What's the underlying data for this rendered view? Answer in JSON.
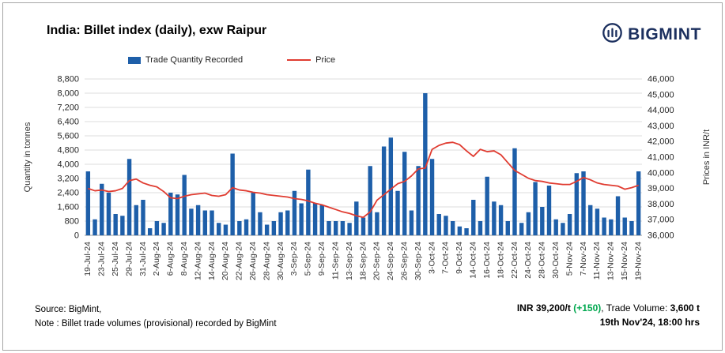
{
  "title": "India: Billet index (daily), exw Raipur",
  "brand": "BIGMINT",
  "legend": {
    "bars": "Trade Quantity Recorded",
    "line": "Price"
  },
  "colors": {
    "bar": "#1E5FA9",
    "line": "#E03C31",
    "brand": "#1B2F5E",
    "green": "#00A84F",
    "grid": "#DCDCDC",
    "axis": "#9A9A9A",
    "tick_text": "#262626",
    "date_text": "#333333"
  },
  "footer": {
    "source": "Source: BigMint,",
    "note": "Note : Billet trade volumes (provisional) recorded by BigMint",
    "price_label": "INR 39,200/t ",
    "price_change": "(+150)",
    "volume_label": ", Trade Volume: ",
    "volume_value": "3,600 t",
    "timestamp": "19th Nov'24, 18:00 hrs"
  },
  "chart_data": {
    "type": "combo-bar-line",
    "title": "India: Billet index (daily), exw Raipur",
    "legend_position": "top",
    "grid": true,
    "tick_every": 2,
    "tick_labels": [
      "19-Jul-24",
      "23-Jul-24",
      "25-Jul-24",
      "29-Jul-24",
      "31-Jul-24",
      "2-Aug-24",
      "6-Aug-24",
      "8-Aug-24",
      "12-Aug-24",
      "14-Aug-24",
      "20-Aug-24",
      "22-Aug-24",
      "26-Aug-24",
      "28-Aug-24",
      "30-Aug-24",
      "3-Sep-24",
      "5-Sep-24",
      "9-Sep-24",
      "11-Sep-24",
      "13-Sep-24",
      "18-Sep-24",
      "20-Sep-24",
      "24-Sep-24",
      "26-Sep-24",
      "30-Sep-24",
      "3-Oct-24",
      "7-Oct-24",
      "9-Oct-24",
      "14-Oct-24",
      "16-Oct-24",
      "18-Oct-24",
      "22-Oct-24",
      "24-Oct-24",
      "28-Oct-24",
      "30-Oct-24",
      "5-Nov-24",
      "7-Nov-24",
      "11-Nov-24",
      "13-Nov-24",
      "15-Nov-24",
      "19-Nov-24"
    ],
    "bars": {
      "name": "Trade Quantity Recorded",
      "values": [
        3600,
        900,
        2900,
        2400,
        1200,
        1100,
        4300,
        1700,
        2000,
        400,
        800,
        700,
        2400,
        2300,
        3400,
        1500,
        1700,
        1400,
        1400,
        700,
        600,
        4600,
        800,
        900,
        2400,
        1300,
        600,
        800,
        1300,
        1400,
        2500,
        1800,
        3700,
        1800,
        1700,
        800,
        800,
        800,
        700,
        1900,
        1000,
        3900,
        1300,
        5000,
        5500,
        2500,
        4700,
        1400,
        3900,
        8000,
        4300,
        1200,
        1100,
        800,
        500,
        400,
        2000,
        800,
        3300,
        1900,
        1700,
        800,
        4900,
        700,
        1300,
        3000,
        1600,
        2800,
        900,
        700,
        1200,
        3500,
        3600,
        1700,
        1500,
        1000,
        900,
        2200,
        1000,
        800,
        3600
      ]
    },
    "price": {
      "name": "Price",
      "values": [
        39000,
        38850,
        38900,
        38800,
        38850,
        39000,
        39500,
        39600,
        39350,
        39200,
        39100,
        38800,
        38400,
        38350,
        38500,
        38600,
        38650,
        38700,
        38550,
        38500,
        38600,
        39050,
        38900,
        38850,
        38750,
        38700,
        38600,
        38550,
        38500,
        38450,
        38350,
        38300,
        38200,
        38050,
        37950,
        37800,
        37650,
        37500,
        37400,
        37250,
        37150,
        37500,
        38250,
        38600,
        38950,
        39300,
        39450,
        39800,
        40250,
        40300,
        41500,
        41750,
        41900,
        41950,
        41800,
        41400,
        41050,
        41500,
        41350,
        41400,
        41150,
        40650,
        40150,
        39900,
        39650,
        39500,
        39450,
        39350,
        39300,
        39250,
        39250,
        39450,
        39700,
        39550,
        39350,
        39250,
        39200,
        39150,
        38950,
        39050,
        39200
      ]
    },
    "left_axis": {
      "label": "Quantity in tonnes",
      "range": [
        0,
        8800
      ],
      "step": 800
    },
    "right_axis": {
      "label": "Prices in INR/t",
      "range": [
        36000,
        46000
      ],
      "step": 1000
    }
  }
}
